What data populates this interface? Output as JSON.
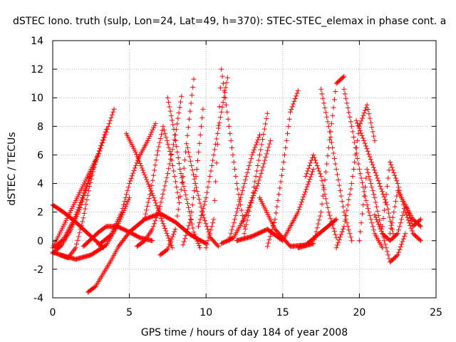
{
  "chart_data": {
    "type": "scatter",
    "title": "dSTEC Iono. truth (sulp, Lon=24, Lat=49, h=370): STEC-STEC_elemax in phase cont. a",
    "xlabel": "GPS time / hours of day 184 of year 2008",
    "ylabel": "dSTEC  / TECUs",
    "xlim": [
      0,
      25
    ],
    "ylim": [
      -4,
      14
    ],
    "x_ticks": [
      "0",
      "5",
      "10",
      "15",
      "20",
      "25"
    ],
    "y_ticks": [
      "-4",
      "-2",
      "0",
      "2",
      "4",
      "6",
      "8",
      "10",
      "12",
      "14"
    ],
    "grid": true,
    "marker": "+",
    "color": "#ff0000",
    "series": [
      {
        "x": [
          0.0,
          0.5,
          1.0,
          1.5,
          2.0,
          2.5,
          3.0,
          3.5,
          4.0
        ],
        "y": [
          -0.5,
          0.6,
          1.7,
          2.8,
          3.9,
          5.0,
          6.1,
          7.6,
          9.2
        ]
      },
      {
        "x": [
          0.0,
          0.7,
          1.5,
          2.2,
          2.8,
          3.3
        ],
        "y": [
          2.5,
          2.0,
          1.3,
          0.6,
          0.0,
          -0.5
        ]
      },
      {
        "x": [
          0.0,
          0.6,
          1.2,
          1.8,
          2.4
        ],
        "y": [
          -0.9,
          -0.3,
          0.8,
          2.3,
          4.4
        ]
      },
      {
        "x": [
          0.0,
          1.0,
          1.5,
          2.0,
          2.4,
          2.8
        ],
        "y": [
          -0.8,
          -1.2,
          -0.5,
          1.6,
          3.8,
          5.6
        ]
      },
      {
        "x": [
          0.1,
          0.7,
          1.4,
          2.1,
          2.8,
          3.5
        ],
        "y": [
          -0.5,
          0.1,
          1.5,
          3.5,
          5.5,
          7.8
        ]
      },
      {
        "x": [
          2.3,
          2.8,
          3.3,
          3.8,
          4.3,
          5.0,
          6.0,
          7.0,
          8.0,
          9.0,
          10.0
        ],
        "y": [
          -3.6,
          -3.2,
          -2.3,
          -1.4,
          -0.4,
          0.6,
          1.5,
          1.9,
          1.3,
          0.4,
          -0.2
        ]
      },
      {
        "x": [
          2.0,
          3.0,
          3.5,
          4.2,
          5.0,
          5.7,
          6.5
        ],
        "y": [
          -0.4,
          0.6,
          1.0,
          1.0,
          0.6,
          0.2,
          0.0
        ]
      },
      {
        "x": [
          0.5,
          1.5,
          2.5,
          3.5,
          4.3,
          5.0
        ],
        "y": [
          -1.0,
          -1.3,
          -1.0,
          -0.3,
          1.2,
          3.0
        ]
      },
      {
        "x": [
          3.0,
          3.8,
          4.5,
          5.0,
          5.6,
          6.2,
          6.7
        ],
        "y": [
          -0.3,
          0.4,
          2.0,
          4.0,
          5.8,
          7.0,
          8.2
        ]
      },
      {
        "x": [
          4.8,
          5.4,
          6.0,
          6.6,
          7.2,
          7.8
        ],
        "y": [
          7.5,
          6.2,
          4.6,
          3.0,
          1.2,
          -0.5
        ]
      },
      {
        "x": [
          6.0,
          6.4,
          6.8,
          7.2,
          7.7,
          8.2
        ],
        "y": [
          1.6,
          3.5,
          6.0,
          8.0,
          6.0,
          3.0
        ]
      },
      {
        "x": [
          5.5,
          6.0,
          6.5,
          7.0,
          7.5,
          8.0,
          8.4
        ],
        "y": [
          -0.4,
          0.0,
          0.8,
          2.4,
          4.7,
          7.4,
          10.1
        ]
      },
      {
        "x": [
          7.5,
          7.9,
          8.3,
          8.8,
          9.2,
          9.6
        ],
        "y": [
          10.0,
          7.8,
          5.0,
          2.6,
          0.6,
          -0.5
        ]
      },
      {
        "x": [
          7.0,
          7.5,
          8.0,
          8.5,
          8.9,
          9.2
        ],
        "y": [
          -1.0,
          -0.6,
          0.8,
          4.5,
          8.5,
          11.3
        ]
      },
      {
        "x": [
          8.8,
          9.3,
          9.8,
          10.3,
          10.8
        ],
        "y": [
          6.5,
          4.0,
          1.8,
          0.2,
          -0.4
        ]
      },
      {
        "x": [
          8.5,
          9.0,
          9.4,
          9.8
        ],
        "y": [
          -0.3,
          1.5,
          5.0,
          9.2
        ]
      },
      {
        "x": [
          10.0,
          10.5,
          11.0,
          11.5,
          12.0,
          12.5
        ],
        "y": [
          -0.5,
          1.5,
          12.0,
          8.0,
          4.0,
          1.0
        ]
      },
      {
        "x": [
          9.5,
          10.0,
          10.5,
          11.0,
          11.4
        ],
        "y": [
          1.0,
          3.0,
          6.0,
          9.0,
          11.4
        ]
      },
      {
        "x": [
          11.5,
          12.0,
          12.5,
          13.0,
          13.5
        ],
        "y": [
          0.0,
          2.0,
          4.0,
          6.0,
          7.4
        ]
      },
      {
        "x": [
          12.5,
          13.0,
          13.5,
          14.0
        ],
        "y": [
          0.5,
          3.0,
          6.0,
          8.9
        ]
      },
      {
        "x": [
          11.0,
          11.8,
          12.6,
          13.4,
          14.2
        ],
        "y": [
          -0.2,
          0.2,
          1.8,
          4.0,
          7.0
        ]
      },
      {
        "x": [
          13.5,
          14.5,
          15.5,
          16.5,
          17.5,
          18.5
        ],
        "y": [
          3.0,
          0.8,
          -0.4,
          -0.3,
          0.6,
          1.5
        ]
      },
      {
        "x": [
          14.0,
          14.5,
          15.0,
          15.5,
          16.0
        ],
        "y": [
          -0.4,
          1.5,
          5.0,
          9.0,
          10.5
        ]
      },
      {
        "x": [
          12.0,
          13.0,
          14.0,
          15.0,
          16.0,
          17.0
        ],
        "y": [
          0.0,
          0.3,
          0.8,
          0.0,
          2.0,
          5.0
        ]
      },
      {
        "x": [
          16.5,
          17.0,
          17.5,
          18.0,
          18.5
        ],
        "y": [
          4.5,
          6.0,
          4.5,
          2.0,
          0.2
        ]
      },
      {
        "x": [
          16.0,
          17.0,
          17.5,
          18.0,
          18.5,
          19.0
        ],
        "y": [
          -0.5,
          -0.2,
          2.0,
          6.5,
          11.0,
          11.5
        ]
      },
      {
        "x": [
          17.5,
          18.0,
          18.5,
          19.0,
          19.5
        ],
        "y": [
          10.6,
          8.0,
          5.0,
          2.0,
          0.0
        ]
      },
      {
        "x": [
          18.5,
          19.0,
          19.5,
          20.0,
          20.5,
          21.0
        ],
        "y": [
          -0.5,
          1.0,
          4.0,
          8.0,
          9.5,
          7.0
        ]
      },
      {
        "x": [
          19.0,
          19.5,
          20.0,
          20.5,
          21.0,
          21.5
        ],
        "y": [
          10.6,
          8.0,
          5.0,
          2.5,
          0.5,
          -0.5
        ]
      },
      {
        "x": [
          20.0,
          20.5,
          21.0,
          21.5,
          22.0,
          22.5,
          23.0
        ],
        "y": [
          0.0,
          5.0,
          3.0,
          0.5,
          -1.5,
          -1.0,
          0.5
        ]
      },
      {
        "x": [
          19.8,
          20.3,
          20.8,
          21.3,
          21.8,
          22.2
        ],
        "y": [
          8.4,
          7.0,
          5.5,
          4.0,
          2.5,
          0.5
        ]
      },
      {
        "x": [
          21.5,
          22.0,
          22.5,
          23.0,
          23.5,
          24.0
        ],
        "y": [
          1.0,
          5.5,
          4.0,
          2.0,
          0.5,
          0.0
        ]
      },
      {
        "x": [
          22.0,
          22.5,
          23.0,
          23.5,
          24.0
        ],
        "y": [
          0.5,
          3.5,
          2.5,
          1.0,
          1.5
        ]
      },
      {
        "x": [
          21.0,
          21.5,
          22.0,
          22.5,
          23.0,
          23.5,
          24.0
        ],
        "y": [
          1.8,
          0.5,
          0.0,
          0.5,
          2.5,
          1.5,
          1.0
        ]
      }
    ]
  }
}
